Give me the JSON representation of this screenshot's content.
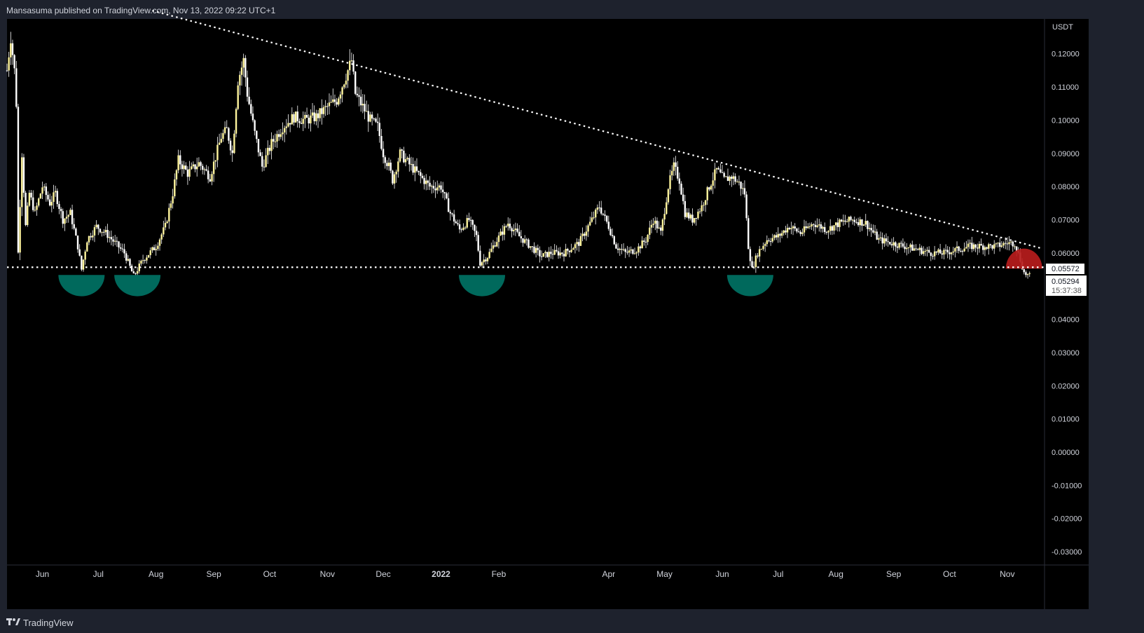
{
  "header": {
    "text": "Mansasuma published on TradingView.com, Nov 13, 2022 09:22 UTC+1"
  },
  "footer": {
    "brand": "TradingView"
  },
  "chart_data": {
    "type": "candlestick",
    "symbol_currency": "USDT",
    "ylim": [
      -0.034,
      0.1305
    ],
    "y_ticks": [
      "0.12000",
      "0.11000",
      "0.10000",
      "0.09000",
      "0.08000",
      "0.07000",
      "0.06000",
      "0.04000",
      "0.03000",
      "0.02000",
      "0.01000",
      "0.00000",
      "-0.01000",
      "-0.02000",
      "-0.03000"
    ],
    "x_ticks": [
      {
        "label": "Jun",
        "t": "2021-06-01"
      },
      {
        "label": "Jul",
        "t": "2021-07-01"
      },
      {
        "label": "Aug",
        "t": "2021-08-01"
      },
      {
        "label": "Sep",
        "t": "2021-09-01"
      },
      {
        "label": "Oct",
        "t": "2021-10-01"
      },
      {
        "label": "Nov",
        "t": "2021-11-01"
      },
      {
        "label": "Dec",
        "t": "2021-12-01"
      },
      {
        "label": "2022",
        "t": "2022-01-01"
      },
      {
        "label": "Feb",
        "t": "2022-02-01"
      },
      {
        "label": "Apr",
        "t": "2022-04-01"
      },
      {
        "label": "May",
        "t": "2022-05-01"
      },
      {
        "label": "Jun",
        "t": "2022-06-01"
      },
      {
        "label": "Jul",
        "t": "2022-07-01"
      },
      {
        "label": "Aug",
        "t": "2022-08-01"
      },
      {
        "label": "Sep",
        "t": "2022-09-01"
      },
      {
        "label": "Oct",
        "t": "2022-10-01"
      },
      {
        "label": "Nov",
        "t": "2022-11-01"
      }
    ],
    "x_range": [
      "2021-05-13",
      "2022-11-21"
    ],
    "price_path": [
      [
        "2021-05-13",
        0.115
      ],
      [
        "2021-05-15",
        0.125
      ],
      [
        "2021-05-17",
        0.115
      ],
      [
        "2021-05-18",
        0.105
      ],
      [
        "2021-05-19",
        0.06
      ],
      [
        "2021-05-21",
        0.09
      ],
      [
        "2021-05-23",
        0.068
      ],
      [
        "2021-05-25",
        0.078
      ],
      [
        "2021-05-28",
        0.072
      ],
      [
        "2021-06-01",
        0.08
      ],
      [
        "2021-06-05",
        0.075
      ],
      [
        "2021-06-08",
        0.078
      ],
      [
        "2021-06-12",
        0.07
      ],
      [
        "2021-06-16",
        0.072
      ],
      [
        "2021-06-20",
        0.062
      ],
      [
        "2021-06-22",
        0.055
      ],
      [
        "2021-06-25",
        0.064
      ],
      [
        "2021-06-30",
        0.068
      ],
      [
        "2021-07-05",
        0.066
      ],
      [
        "2021-07-10",
        0.063
      ],
      [
        "2021-07-15",
        0.06
      ],
      [
        "2021-07-20",
        0.053
      ],
      [
        "2021-07-25",
        0.058
      ],
      [
        "2021-08-01",
        0.062
      ],
      [
        "2021-08-06",
        0.068
      ],
      [
        "2021-08-10",
        0.078
      ],
      [
        "2021-08-13",
        0.088
      ],
      [
        "2021-08-18",
        0.084
      ],
      [
        "2021-08-24",
        0.087
      ],
      [
        "2021-08-30",
        0.083
      ],
      [
        "2021-09-05",
        0.095
      ],
      [
        "2021-09-08",
        0.097
      ],
      [
        "2021-09-11",
        0.09
      ],
      [
        "2021-09-14",
        0.112
      ],
      [
        "2021-09-17",
        0.118
      ],
      [
        "2021-09-19",
        0.108
      ],
      [
        "2021-09-23",
        0.096
      ],
      [
        "2021-09-27",
        0.086
      ],
      [
        "2021-10-02",
        0.093
      ],
      [
        "2021-10-08",
        0.098
      ],
      [
        "2021-10-14",
        0.101
      ],
      [
        "2021-10-20",
        0.1
      ],
      [
        "2021-10-26",
        0.101
      ],
      [
        "2021-11-01",
        0.104
      ],
      [
        "2021-11-06",
        0.106
      ],
      [
        "2021-11-10",
        0.112
      ],
      [
        "2021-11-14",
        0.118
      ],
      [
        "2021-11-16",
        0.108
      ],
      [
        "2021-11-20",
        0.104
      ],
      [
        "2021-11-24",
        0.1
      ],
      [
        "2021-11-28",
        0.098
      ],
      [
        "2021-12-01",
        0.09
      ],
      [
        "2021-12-04",
        0.086
      ],
      [
        "2021-12-06",
        0.082
      ],
      [
        "2021-12-10",
        0.09
      ],
      [
        "2021-12-16",
        0.086
      ],
      [
        "2021-12-21",
        0.083
      ],
      [
        "2021-12-26",
        0.08
      ],
      [
        "2022-01-01",
        0.08
      ],
      [
        "2022-01-06",
        0.072
      ],
      [
        "2022-01-11",
        0.067
      ],
      [
        "2022-01-16",
        0.07
      ],
      [
        "2022-01-20",
        0.065
      ],
      [
        "2022-01-22",
        0.057
      ],
      [
        "2022-01-26",
        0.059
      ],
      [
        "2022-01-30",
        0.063
      ],
      [
        "2022-02-06",
        0.069
      ],
      [
        "2022-02-12",
        0.065
      ],
      [
        "2022-02-18",
        0.062
      ],
      [
        "2022-02-24",
        0.059
      ],
      [
        "2022-03-01",
        0.06
      ],
      [
        "2022-03-08",
        0.06
      ],
      [
        "2022-03-16",
        0.063
      ],
      [
        "2022-03-23",
        0.07
      ],
      [
        "2022-03-27",
        0.074
      ],
      [
        "2022-04-01",
        0.068
      ],
      [
        "2022-04-05",
        0.062
      ],
      [
        "2022-04-10",
        0.06
      ],
      [
        "2022-04-16",
        0.061
      ],
      [
        "2022-04-21",
        0.064
      ],
      [
        "2022-04-25",
        0.07
      ],
      [
        "2022-04-29",
        0.066
      ],
      [
        "2022-05-03",
        0.08
      ],
      [
        "2022-05-06",
        0.086
      ],
      [
        "2022-05-09",
        0.082
      ],
      [
        "2022-05-12",
        0.072
      ],
      [
        "2022-05-16",
        0.07
      ],
      [
        "2022-05-21",
        0.074
      ],
      [
        "2022-05-25",
        0.08
      ],
      [
        "2022-05-29",
        0.085
      ],
      [
        "2022-06-02",
        0.082
      ],
      [
        "2022-06-06",
        0.083
      ],
      [
        "2022-06-10",
        0.081
      ],
      [
        "2022-06-13",
        0.078
      ],
      [
        "2022-06-15",
        0.062
      ],
      [
        "2022-06-17",
        0.055
      ],
      [
        "2022-06-20",
        0.06
      ],
      [
        "2022-06-25",
        0.064
      ],
      [
        "2022-07-01",
        0.065
      ],
      [
        "2022-07-07",
        0.068
      ],
      [
        "2022-07-13",
        0.066
      ],
      [
        "2022-07-20",
        0.069
      ],
      [
        "2022-07-27",
        0.067
      ],
      [
        "2022-08-03",
        0.069
      ],
      [
        "2022-08-10",
        0.07
      ],
      [
        "2022-08-17",
        0.069
      ],
      [
        "2022-08-24",
        0.064
      ],
      [
        "2022-08-31",
        0.063
      ],
      [
        "2022-09-07",
        0.062
      ],
      [
        "2022-09-14",
        0.061
      ],
      [
        "2022-09-21",
        0.06
      ],
      [
        "2022-09-28",
        0.06
      ],
      [
        "2022-10-05",
        0.061
      ],
      [
        "2022-10-12",
        0.062
      ],
      [
        "2022-10-19",
        0.062
      ],
      [
        "2022-10-26",
        0.062
      ],
      [
        "2022-11-01",
        0.063
      ],
      [
        "2022-11-05",
        0.063
      ],
      [
        "2022-11-08",
        0.058
      ],
      [
        "2022-11-10",
        0.054
      ],
      [
        "2022-11-13",
        0.053
      ]
    ],
    "support_level": 0.0557,
    "trendline": {
      "from": [
        "2021-07-30",
        0.133
      ],
      "to": [
        "2022-11-20",
        0.0613
      ]
    },
    "bottom_markers": [
      "2021-06-22",
      "2021-07-22",
      "2022-01-23",
      "2022-06-16"
    ],
    "top_marker": "2022-11-10",
    "price_labels": {
      "support": "0.05572",
      "current": "0.05294",
      "countdown": "15:37:38"
    },
    "colors": {
      "candle": "#fff59d",
      "wick": "#ffffff",
      "bottom_marker": "#00695c",
      "top_marker": "#b71c1c",
      "line": "#ffffff",
      "plot_bg": "#000000",
      "frame_bg": "#1e222d"
    }
  }
}
